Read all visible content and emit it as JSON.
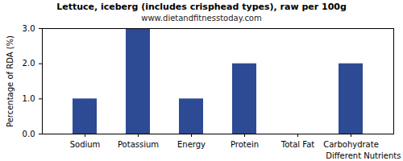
{
  "chart_data": {
    "type": "bar",
    "title": "Lettuce, iceberg (includes crisphead types), raw per 100g",
    "subtitle": "www.dietandfitnesstoday.com",
    "x_label": "Different Nutrients",
    "y_label": "Percentage of RDA (%)",
    "categories": [
      "Sodium",
      "Potassium",
      "Energy",
      "Protein",
      "Total Fat",
      "Carbohydrate"
    ],
    "values": [
      1,
      3,
      1,
      2,
      0,
      2
    ],
    "color": "#2d4a94",
    "ylim": [
      0,
      3
    ],
    "yticks": [
      {
        "value": 0,
        "label": "0.0"
      },
      {
        "value": 1,
        "label": "1.0"
      },
      {
        "value": 2,
        "label": "2.0"
      },
      {
        "value": 3,
        "label": "3.0"
      }
    ],
    "grid": false
  }
}
